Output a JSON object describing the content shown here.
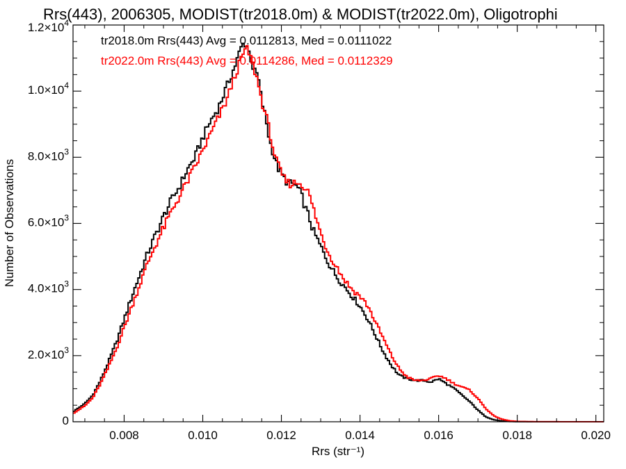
{
  "chart_data": {
    "type": "step-histogram",
    "title": "Rrs(443), 2006305, MODIST(tr2018.0m) & MODIST(tr2022.0m), Oligotrophi",
    "xlabel": "Rrs (str⁻¹)",
    "ylabel": "Number of Observations",
    "xlim": [
      0.0067,
      0.0202
    ],
    "ylim": [
      0,
      12000
    ],
    "x_ticks": [
      {
        "value": 0.008,
        "label": "0.008"
      },
      {
        "value": 0.01,
        "label": "0.010"
      },
      {
        "value": 0.012,
        "label": "0.012"
      },
      {
        "value": 0.014,
        "label": "0.014"
      },
      {
        "value": 0.016,
        "label": "0.016"
      },
      {
        "value": 0.018,
        "label": "0.018"
      },
      {
        "value": 0.02,
        "label": "0.020"
      }
    ],
    "y_ticks": [
      {
        "value": 0,
        "mantissa": "0",
        "exp": ""
      },
      {
        "value": 2000,
        "mantissa": "2.0×10",
        "exp": "3"
      },
      {
        "value": 4000,
        "mantissa": "4.0×10",
        "exp": "3"
      },
      {
        "value": 6000,
        "mantissa": "6.0×10",
        "exp": "3"
      },
      {
        "value": 8000,
        "mantissa": "8.0×10",
        "exp": "3"
      },
      {
        "value": 10000,
        "mantissa": "1.0×10",
        "exp": "4"
      },
      {
        "value": 12000,
        "mantissa": "1.2×10",
        "exp": "4"
      }
    ],
    "bin_width": 5e-05,
    "grid": false,
    "legend_position": "top-left",
    "series": [
      {
        "name": "tr2018.0m Rrs(443)",
        "annotation": "tr2018.0m Rrs(443) Avg = 0.0112813, Med = 0.0111022",
        "color": "#000000",
        "points": [
          [
            0.0067,
            300
          ],
          [
            0.007,
            550
          ],
          [
            0.0072,
            800
          ],
          [
            0.0074,
            1250
          ],
          [
            0.0076,
            1800
          ],
          [
            0.0078,
            2400
          ],
          [
            0.008,
            3100
          ],
          [
            0.0082,
            3800
          ],
          [
            0.0084,
            4450
          ],
          [
            0.0086,
            5100
          ],
          [
            0.0088,
            5650
          ],
          [
            0.009,
            6200
          ],
          [
            0.0092,
            6700
          ],
          [
            0.0094,
            7100
          ],
          [
            0.0096,
            7600
          ],
          [
            0.0098,
            8000
          ],
          [
            0.01,
            8600
          ],
          [
            0.0102,
            9100
          ],
          [
            0.0104,
            9500
          ],
          [
            0.0106,
            10100
          ],
          [
            0.0108,
            10700
          ],
          [
            0.011,
            11400
          ],
          [
            0.0111,
            11450
          ],
          [
            0.0112,
            11100
          ],
          [
            0.0113,
            10600
          ],
          [
            0.0114,
            10500
          ],
          [
            0.0115,
            9700
          ],
          [
            0.0116,
            9200
          ],
          [
            0.0117,
            8500
          ],
          [
            0.0118,
            8100
          ],
          [
            0.0119,
            7700
          ],
          [
            0.012,
            7500
          ],
          [
            0.0121,
            7300
          ],
          [
            0.0122,
            7200
          ],
          [
            0.0123,
            7200
          ],
          [
            0.0124,
            7100
          ],
          [
            0.0125,
            6900
          ],
          [
            0.0126,
            6500
          ],
          [
            0.0127,
            6200
          ],
          [
            0.0128,
            5800
          ],
          [
            0.013,
            5300
          ],
          [
            0.0132,
            4800
          ],
          [
            0.0134,
            4400
          ],
          [
            0.0136,
            4100
          ],
          [
            0.0138,
            3800
          ],
          [
            0.014,
            3500
          ],
          [
            0.0142,
            3100
          ],
          [
            0.0144,
            2600
          ],
          [
            0.0146,
            2100
          ],
          [
            0.0148,
            1700
          ],
          [
            0.015,
            1400
          ],
          [
            0.0152,
            1300
          ],
          [
            0.0154,
            1250
          ],
          [
            0.0156,
            1250
          ],
          [
            0.0158,
            1200
          ],
          [
            0.016,
            1300
          ],
          [
            0.0162,
            1150
          ],
          [
            0.0164,
            1000
          ],
          [
            0.0166,
            800
          ],
          [
            0.0168,
            600
          ],
          [
            0.017,
            350
          ],
          [
            0.0172,
            150
          ],
          [
            0.0174,
            60
          ],
          [
            0.0176,
            25
          ],
          [
            0.0178,
            10
          ],
          [
            0.018,
            3
          ],
          [
            0.0185,
            0
          ],
          [
            0.0202,
            0
          ]
        ]
      },
      {
        "name": "tr2022.0m Rrs(443)",
        "annotation": "tr2022.0m Rrs(443) Avg = 0.0114286, Med = 0.0112329",
        "color": "#ff0000",
        "points": [
          [
            0.0067,
            250
          ],
          [
            0.007,
            480
          ],
          [
            0.0072,
            720
          ],
          [
            0.0074,
            1150
          ],
          [
            0.0076,
            1650
          ],
          [
            0.0078,
            2200
          ],
          [
            0.008,
            2850
          ],
          [
            0.0082,
            3500
          ],
          [
            0.0084,
            4150
          ],
          [
            0.0086,
            4800
          ],
          [
            0.0088,
            5350
          ],
          [
            0.009,
            5850
          ],
          [
            0.0092,
            6350
          ],
          [
            0.0094,
            6800
          ],
          [
            0.0096,
            7250
          ],
          [
            0.0098,
            7700
          ],
          [
            0.01,
            8200
          ],
          [
            0.0102,
            8700
          ],
          [
            0.0104,
            9200
          ],
          [
            0.0106,
            9700
          ],
          [
            0.0108,
            10400
          ],
          [
            0.011,
            11050
          ],
          [
            0.0111,
            11300
          ],
          [
            0.0112,
            11100
          ],
          [
            0.0113,
            10700
          ],
          [
            0.0114,
            10300
          ],
          [
            0.0115,
            9700
          ],
          [
            0.0116,
            9300
          ],
          [
            0.0117,
            8800
          ],
          [
            0.0118,
            8200
          ],
          [
            0.0119,
            7800
          ],
          [
            0.012,
            7500
          ],
          [
            0.0121,
            7300
          ],
          [
            0.0122,
            7200
          ],
          [
            0.0123,
            7200
          ],
          [
            0.0124,
            7250
          ],
          [
            0.0125,
            7200
          ],
          [
            0.0126,
            7100
          ],
          [
            0.0127,
            6900
          ],
          [
            0.0128,
            6500
          ],
          [
            0.013,
            5700
          ],
          [
            0.0132,
            5100
          ],
          [
            0.0134,
            4700
          ],
          [
            0.0136,
            4300
          ],
          [
            0.0138,
            4000
          ],
          [
            0.014,
            3800
          ],
          [
            0.0142,
            3500
          ],
          [
            0.0144,
            3000
          ],
          [
            0.0146,
            2500
          ],
          [
            0.0148,
            2000
          ],
          [
            0.015,
            1600
          ],
          [
            0.0152,
            1350
          ],
          [
            0.0154,
            1250
          ],
          [
            0.0156,
            1250
          ],
          [
            0.0158,
            1300
          ],
          [
            0.016,
            1400
          ],
          [
            0.0162,
            1300
          ],
          [
            0.0164,
            1150
          ],
          [
            0.0166,
            1050
          ],
          [
            0.0168,
            950
          ],
          [
            0.017,
            700
          ],
          [
            0.0172,
            400
          ],
          [
            0.0174,
            180
          ],
          [
            0.0176,
            80
          ],
          [
            0.0178,
            30
          ],
          [
            0.018,
            10
          ],
          [
            0.0185,
            2
          ],
          [
            0.0202,
            0
          ]
        ]
      }
    ]
  }
}
